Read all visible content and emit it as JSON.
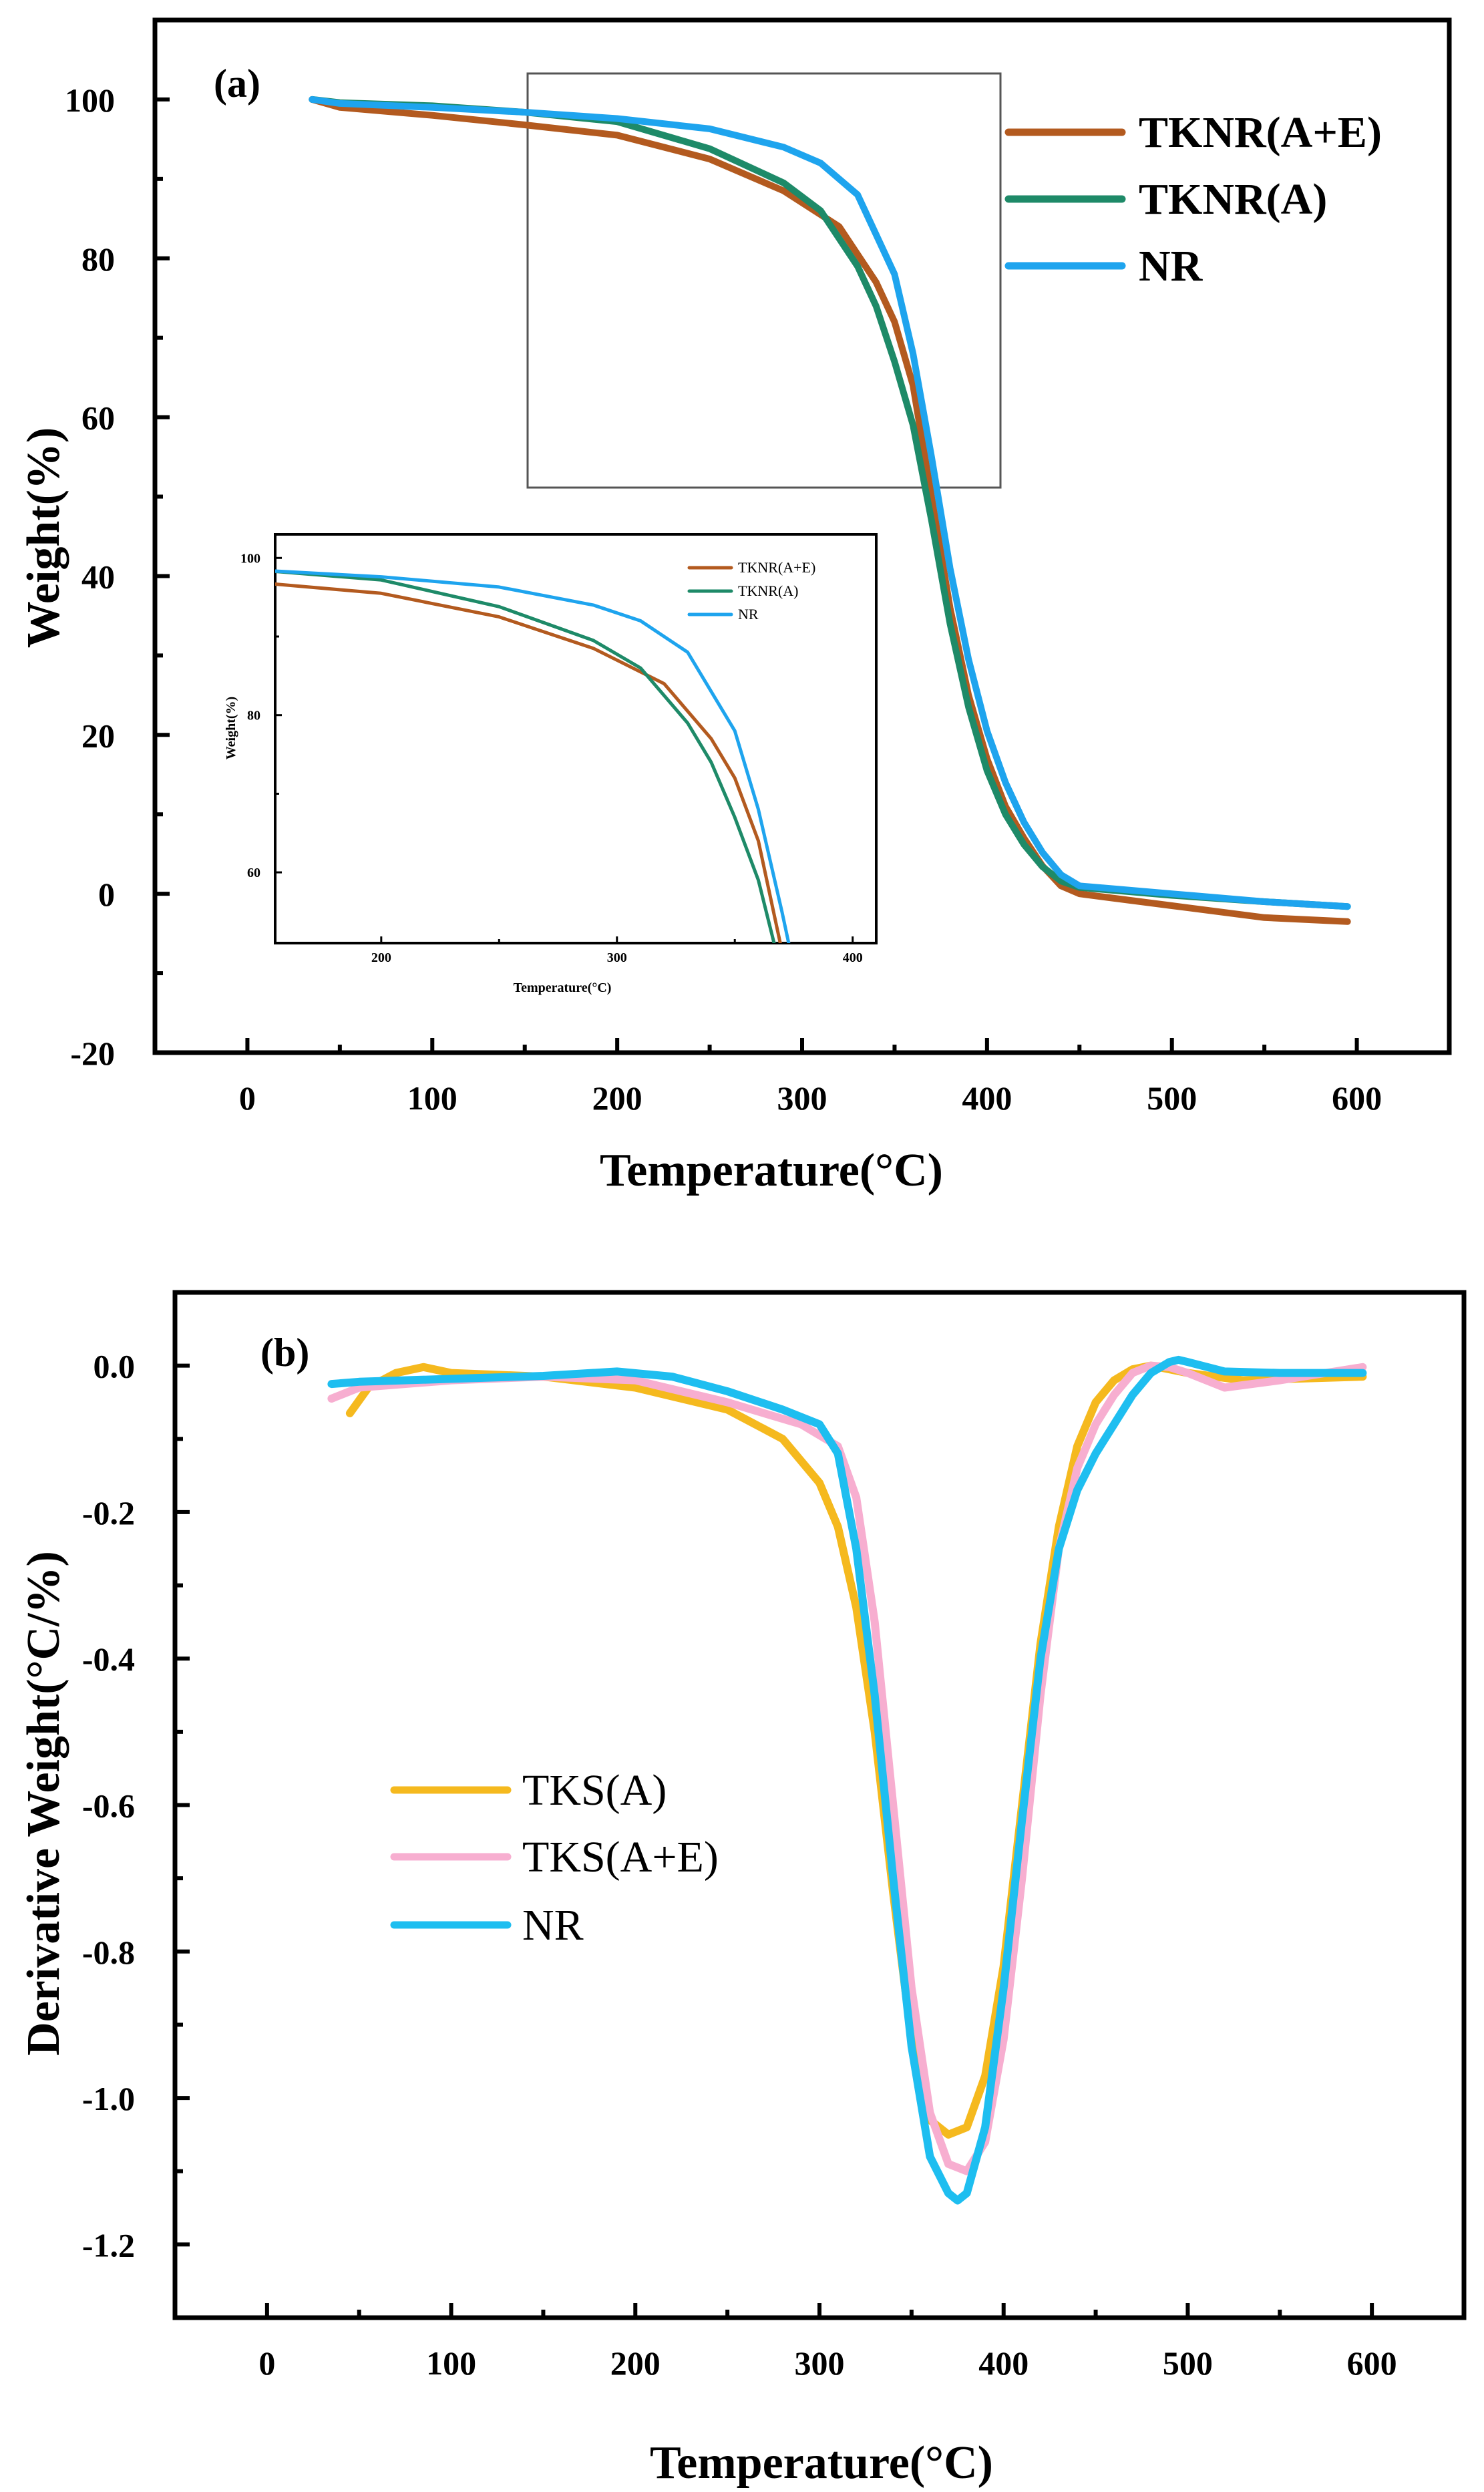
{
  "chart_data": [
    {
      "panel": "(a)",
      "type": "line",
      "xlabel": "Temperature(°C)",
      "ylabel": "Weight(%)",
      "xlim": [
        -50,
        650
      ],
      "ylim": [
        -20,
        110
      ],
      "xticks": [
        0,
        100,
        200,
        300,
        400,
        500,
        600
      ],
      "yticks": [
        -20,
        0,
        20,
        40,
        60,
        80,
        100
      ],
      "legend_position": "top-right",
      "series": [
        {
          "name": "TKNR(A+E)",
          "color": "#b35a1f",
          "x": [
            35,
            50,
            100,
            150,
            200,
            250,
            290,
            320,
            340,
            350,
            360,
            370,
            380,
            390,
            400,
            410,
            420,
            430,
            440,
            450,
            500,
            550,
            595
          ],
          "y": [
            100,
            99,
            98,
            96.8,
            95.5,
            92.5,
            88.5,
            84,
            77,
            72,
            64,
            50,
            36,
            25,
            17,
            11,
            7,
            3.5,
            1,
            0,
            -1.5,
            -3,
            -3.5
          ]
        },
        {
          "name": "TKNR(A)",
          "color": "#1e8a68",
          "x": [
            35,
            50,
            100,
            150,
            200,
            250,
            290,
            310,
            330,
            340,
            350,
            360,
            370,
            380,
            390,
            400,
            410,
            420,
            430,
            440,
            450,
            500,
            550,
            595
          ],
          "y": [
            100,
            99.6,
            99.2,
            98.4,
            97.2,
            93.8,
            89.5,
            86,
            79,
            74,
            67,
            59,
            47,
            34,
            23.5,
            15.5,
            10,
            6.2,
            3.4,
            1.6,
            0.8,
            -0.2,
            -1,
            -1.6
          ]
        },
        {
          "name": "NR",
          "color": "#1ea4ee",
          "x": [
            35,
            50,
            100,
            150,
            200,
            250,
            290,
            310,
            330,
            350,
            360,
            370,
            380,
            390,
            400,
            410,
            420,
            430,
            440,
            450,
            500,
            550,
            595
          ],
          "y": [
            100,
            99.5,
            99,
            98.4,
            97.6,
            96.3,
            94,
            92,
            88,
            78,
            68,
            55,
            41,
            29.5,
            20.5,
            14,
            9,
            5.2,
            2.4,
            1,
            0,
            -1,
            -1.6
          ]
        }
      ],
      "inset": {
        "xlabel": "Temperature(°C)",
        "ylabel": "Weight(%)",
        "xlim": [
          155,
          410
        ],
        "ylim": [
          51,
          103
        ],
        "xticks": [
          200,
          300,
          400
        ],
        "yticks": [
          60,
          80,
          100
        ],
        "legend": [
          "TKNR(A+E)",
          "TKNR(A)",
          "NR"
        ]
      }
    },
    {
      "panel": "(b)",
      "type": "line",
      "xlabel": "Temperature(°C)",
      "ylabel": "Derivative Weight(°C/%)",
      "xlim": [
        -50,
        650
      ],
      "ylim": [
        -1.3,
        0.1
      ],
      "xticks": [
        0,
        100,
        200,
        300,
        400,
        500,
        600
      ],
      "yticks": [
        -1.2,
        -1.0,
        -0.8,
        -0.6,
        -0.4,
        -0.2,
        0.0
      ],
      "ytick_labels": [
        "-1.2",
        "-1.0",
        "-0.8",
        "-0.6",
        "-0.4",
        "-0.2",
        "0.0"
      ],
      "legend_position": "center-left",
      "series": [
        {
          "name": "TKS(A)",
          "color": "#f5b91e",
          "x": [
            45,
            55,
            70,
            85,
            100,
            150,
            200,
            250,
            280,
            300,
            310,
            320,
            330,
            340,
            350,
            360,
            370,
            380,
            390,
            400,
            410,
            420,
            430,
            440,
            450,
            460,
            470,
            480,
            500,
            530,
            595
          ],
          "y": [
            -0.065,
            -0.03,
            -0.01,
            -0.002,
            -0.01,
            -0.015,
            -0.03,
            -0.06,
            -0.1,
            -0.16,
            -0.22,
            -0.33,
            -0.5,
            -0.72,
            -0.92,
            -1.03,
            -1.05,
            -1.04,
            -0.97,
            -0.82,
            -0.6,
            -0.38,
            -0.22,
            -0.11,
            -0.05,
            -0.02,
            -0.005,
            0.0,
            -0.01,
            -0.02,
            -0.015
          ]
        },
        {
          "name": "TKS(A+E)",
          "color": "#f7aed0",
          "x": [
            35,
            50,
            100,
            150,
            200,
            250,
            290,
            310,
            320,
            330,
            340,
            350,
            360,
            370,
            380,
            390,
            400,
            410,
            420,
            430,
            440,
            450,
            460,
            470,
            480,
            490,
            500,
            510,
            520,
            550,
            595
          ],
          "y": [
            -0.045,
            -0.03,
            -0.02,
            -0.015,
            -0.02,
            -0.05,
            -0.08,
            -0.11,
            -0.18,
            -0.35,
            -0.6,
            -0.85,
            -1.02,
            -1.09,
            -1.1,
            -1.06,
            -0.92,
            -0.7,
            -0.45,
            -0.25,
            -0.14,
            -0.08,
            -0.04,
            -0.01,
            0.0,
            -0.002,
            -0.01,
            -0.02,
            -0.03,
            -0.02,
            -0.002
          ]
        },
        {
          "name": "NR",
          "color": "#1ebef0",
          "x": [
            35,
            50,
            100,
            150,
            190,
            220,
            250,
            280,
            300,
            310,
            320,
            330,
            340,
            350,
            360,
            370,
            375,
            380,
            390,
            400,
            410,
            420,
            430,
            440,
            450,
            460,
            470,
            480,
            490,
            495,
            500,
            520,
            550,
            595
          ],
          "y": [
            -0.025,
            -0.022,
            -0.018,
            -0.014,
            -0.008,
            -0.015,
            -0.035,
            -0.06,
            -0.08,
            -0.12,
            -0.25,
            -0.45,
            -0.7,
            -0.93,
            -1.08,
            -1.13,
            -1.14,
            -1.13,
            -1.04,
            -0.85,
            -0.62,
            -0.4,
            -0.25,
            -0.17,
            -0.12,
            -0.08,
            -0.04,
            -0.01,
            0.005,
            0.008,
            0.005,
            -0.008,
            -0.01,
            -0.01
          ]
        }
      ]
    }
  ]
}
